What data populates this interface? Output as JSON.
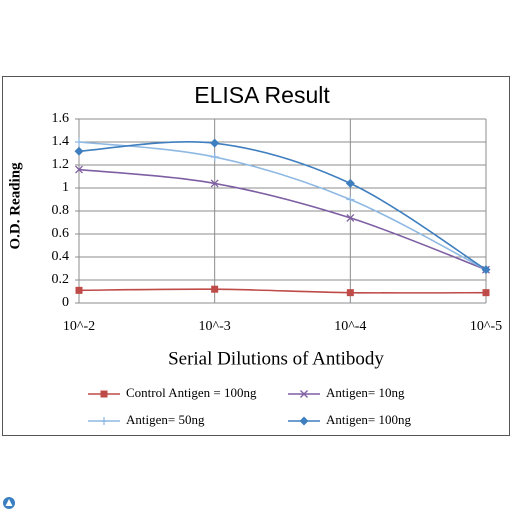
{
  "chart_data": {
    "type": "line",
    "title": "ELISA Result",
    "y_label": "O.D. Reading",
    "x_label": "Serial Dilutions  of Antibody",
    "categories": [
      "10^-2",
      "10^-3",
      "10^-4",
      "10^-5"
    ],
    "series": [
      {
        "name": "Control Antigen = 100ng",
        "color": "#be4b48",
        "marker": "square",
        "values": [
          0.11,
          0.12,
          0.09,
          0.09
        ]
      },
      {
        "name": "Antigen= 10ng",
        "color": "#7e5fa3",
        "marker": "x",
        "values": [
          1.16,
          1.04,
          0.74,
          0.29
        ]
      },
      {
        "name": "Antigen= 50ng",
        "color": "#8fb9e3",
        "marker": "plus",
        "values": [
          1.4,
          1.27,
          0.9,
          0.29
        ]
      },
      {
        "name": "Antigen= 100ng",
        "color": "#3f7fbf",
        "marker": "diamond",
        "values": [
          1.32,
          1.39,
          1.04,
          0.29
        ]
      }
    ],
    "ylim": [
      0,
      1.6
    ],
    "yticks": [
      0,
      0.2,
      0.4,
      0.6,
      0.8,
      1,
      1.2,
      1.4,
      1.6
    ],
    "grid": true
  }
}
